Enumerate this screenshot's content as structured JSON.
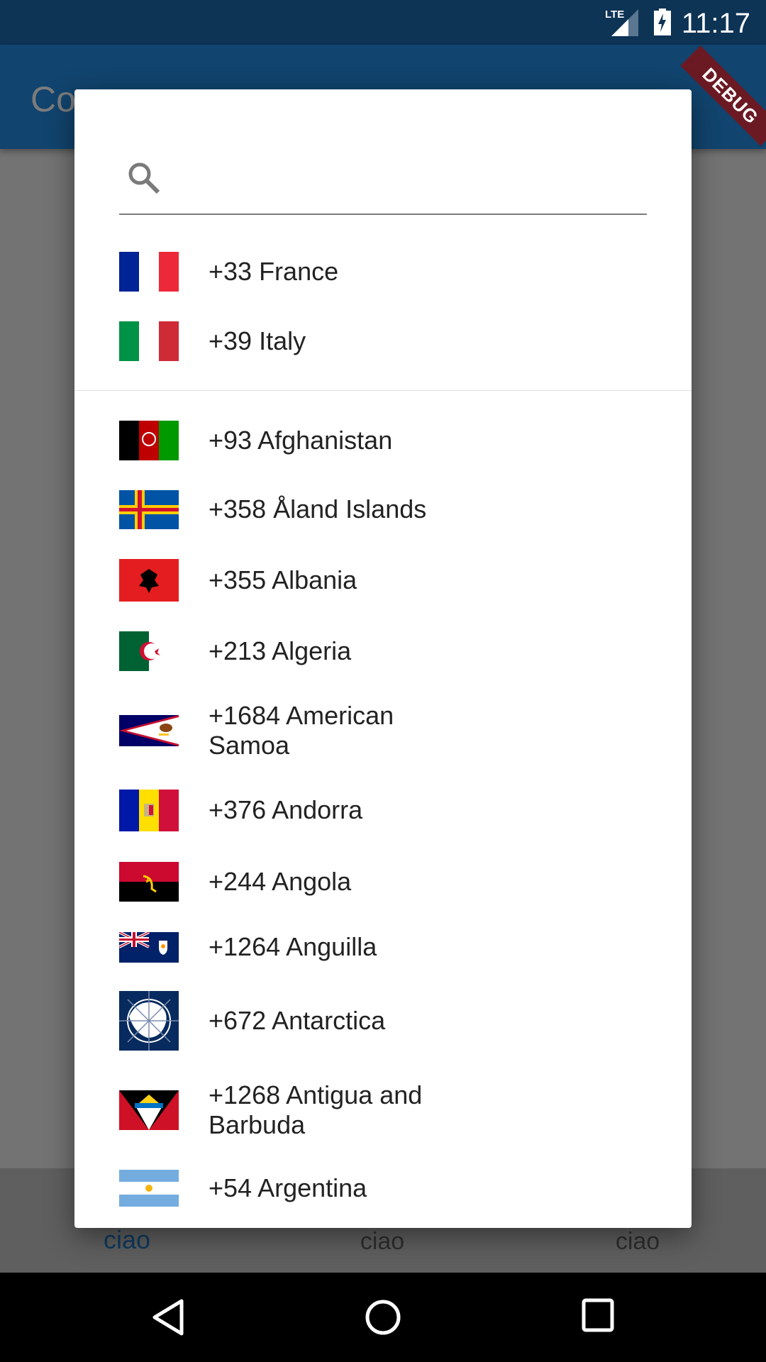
{
  "status_bar": {
    "time": "11:17",
    "network": "LTE",
    "debug_banner": "DEBUG"
  },
  "app_bar": {
    "title": "Co"
  },
  "bottom_tabs": [
    {
      "label": "ciao",
      "active": true
    },
    {
      "label": "ciao",
      "active": false
    },
    {
      "label": "ciao",
      "active": false
    }
  ],
  "dialog": {
    "search": {
      "value": "",
      "placeholder": ""
    },
    "favorites": [
      {
        "label": "+33 France",
        "flag": "fr"
      },
      {
        "label": "+39 Italy",
        "flag": "it"
      }
    ],
    "countries": [
      {
        "label": "+93 Afghanistan",
        "flag": "af"
      },
      {
        "label": "+358 Åland Islands",
        "flag": "ax"
      },
      {
        "label": "+355 Albania",
        "flag": "al"
      },
      {
        "label": "+213 Algeria",
        "flag": "dz"
      },
      {
        "label": "+1684 American Samoa",
        "flag": "as"
      },
      {
        "label": "+376 Andorra",
        "flag": "ad"
      },
      {
        "label": "+244 Angola",
        "flag": "ao"
      },
      {
        "label": "+1264 Anguilla",
        "flag": "ai"
      },
      {
        "label": "+672 Antarctica",
        "flag": "aq"
      },
      {
        "label": "+1268 Antigua and Barbuda",
        "flag": "ag"
      },
      {
        "label": "+54 Argentina",
        "flag": "ar"
      }
    ]
  },
  "nav_bar": {
    "back": "back-icon",
    "home": "home-icon",
    "recents": "recents-icon"
  }
}
